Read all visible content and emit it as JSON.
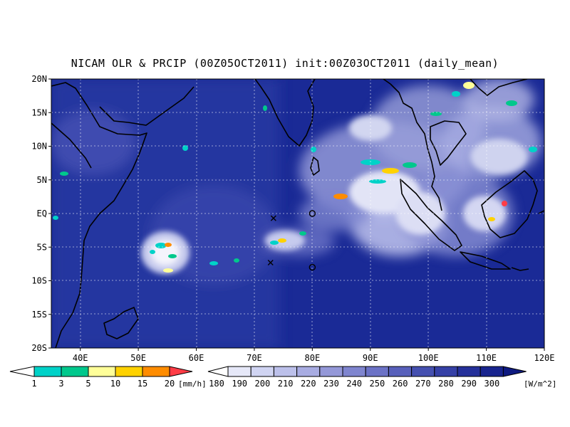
{
  "title": "NICAM OLR & PRCIP (00Z05OCT2011) init:00Z03OCT2011 (daily_mean)",
  "map": {
    "lon_range": [
      35,
      120
    ],
    "lat_range": [
      -20,
      20
    ],
    "lat_ticks": [
      "20N",
      "15N",
      "10N",
      "5N",
      "EQ",
      "5S",
      "10S",
      "15S",
      "20S"
    ],
    "lon_ticks": [
      "40E",
      "50E",
      "60E",
      "70E",
      "80E",
      "90E",
      "100E",
      "110E",
      "120E"
    ],
    "markers": [
      {
        "type": "x",
        "lon": 73.3,
        "lat": -0.7
      },
      {
        "type": "x",
        "lon": 72.8,
        "lat": -7.3
      },
      {
        "type": "o",
        "lon": 80.0,
        "lat": 0.0
      },
      {
        "type": "o",
        "lon": 80.0,
        "lat": -8.0
      }
    ]
  },
  "precip_legend": {
    "labels": [
      "1",
      "3",
      "5",
      "10",
      "15",
      "20"
    ],
    "unit": "[mm/h]",
    "colors": [
      "#00d2c8",
      "#00c88c",
      "#ffff99",
      "#ffd200",
      "#ff8c00",
      "#ff3c46"
    ]
  },
  "olr_legend": {
    "labels": [
      "180",
      "190",
      "200",
      "210",
      "220",
      "230",
      "240",
      "250",
      "260",
      "270",
      "280",
      "290",
      "300"
    ],
    "unit": "[W/m^2]",
    "colors": [
      "#e6e8f8",
      "#d0d4f2",
      "#bcc0ea",
      "#a8ace2",
      "#9498d8",
      "#7f85cf",
      "#6b72c6",
      "#5860bb",
      "#4550b0",
      "#3540a6",
      "#25309a",
      "#18248e",
      "#0e1a80"
    ]
  }
}
